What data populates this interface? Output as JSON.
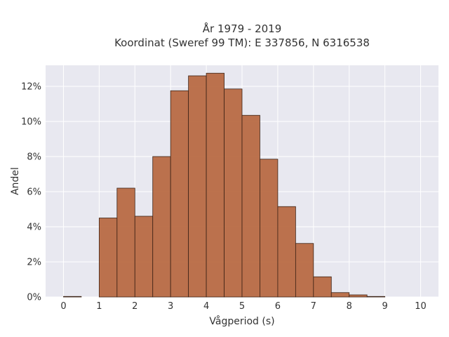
{
  "chart_data": {
    "type": "bar",
    "title": [
      "År 1979 - 2019",
      "Koordinat (Sweref 99 TM): E 337856, N 6316538"
    ],
    "xlabel": "Vågperiod (s)",
    "ylabel": "Andel",
    "xlim": [
      -0.5,
      10.5
    ],
    "ylim": [
      0,
      13.2
    ],
    "x_ticks": [
      0,
      1,
      2,
      3,
      4,
      5,
      6,
      7,
      8,
      9,
      10
    ],
    "y_ticks": [
      0,
      2,
      4,
      6,
      8,
      10,
      12
    ],
    "y_tick_suffix": "%",
    "grid": true,
    "bin_width": 0.5,
    "bins": [
      {
        "start": 0.0,
        "value": 0.03
      },
      {
        "start": 0.5,
        "value": 0.0
      },
      {
        "start": 1.0,
        "value": 4.5
      },
      {
        "start": 1.5,
        "value": 6.2
      },
      {
        "start": 2.0,
        "value": 4.6
      },
      {
        "start": 2.5,
        "value": 8.0
      },
      {
        "start": 3.0,
        "value": 11.75
      },
      {
        "start": 3.5,
        "value": 12.6
      },
      {
        "start": 4.0,
        "value": 12.75
      },
      {
        "start": 4.5,
        "value": 11.85
      },
      {
        "start": 5.0,
        "value": 10.35
      },
      {
        "start": 5.5,
        "value": 7.85
      },
      {
        "start": 6.0,
        "value": 5.15
      },
      {
        "start": 6.5,
        "value": 3.05
      },
      {
        "start": 7.0,
        "value": 1.15
      },
      {
        "start": 7.5,
        "value": 0.25
      },
      {
        "start": 8.0,
        "value": 0.12
      },
      {
        "start": 8.5,
        "value": 0.03
      }
    ],
    "colors": {
      "bar_fill": "#b86a43",
      "bar_stroke": "#3b2216",
      "plot_background": "#e8e8f0",
      "grid": "#ffffff"
    }
  }
}
